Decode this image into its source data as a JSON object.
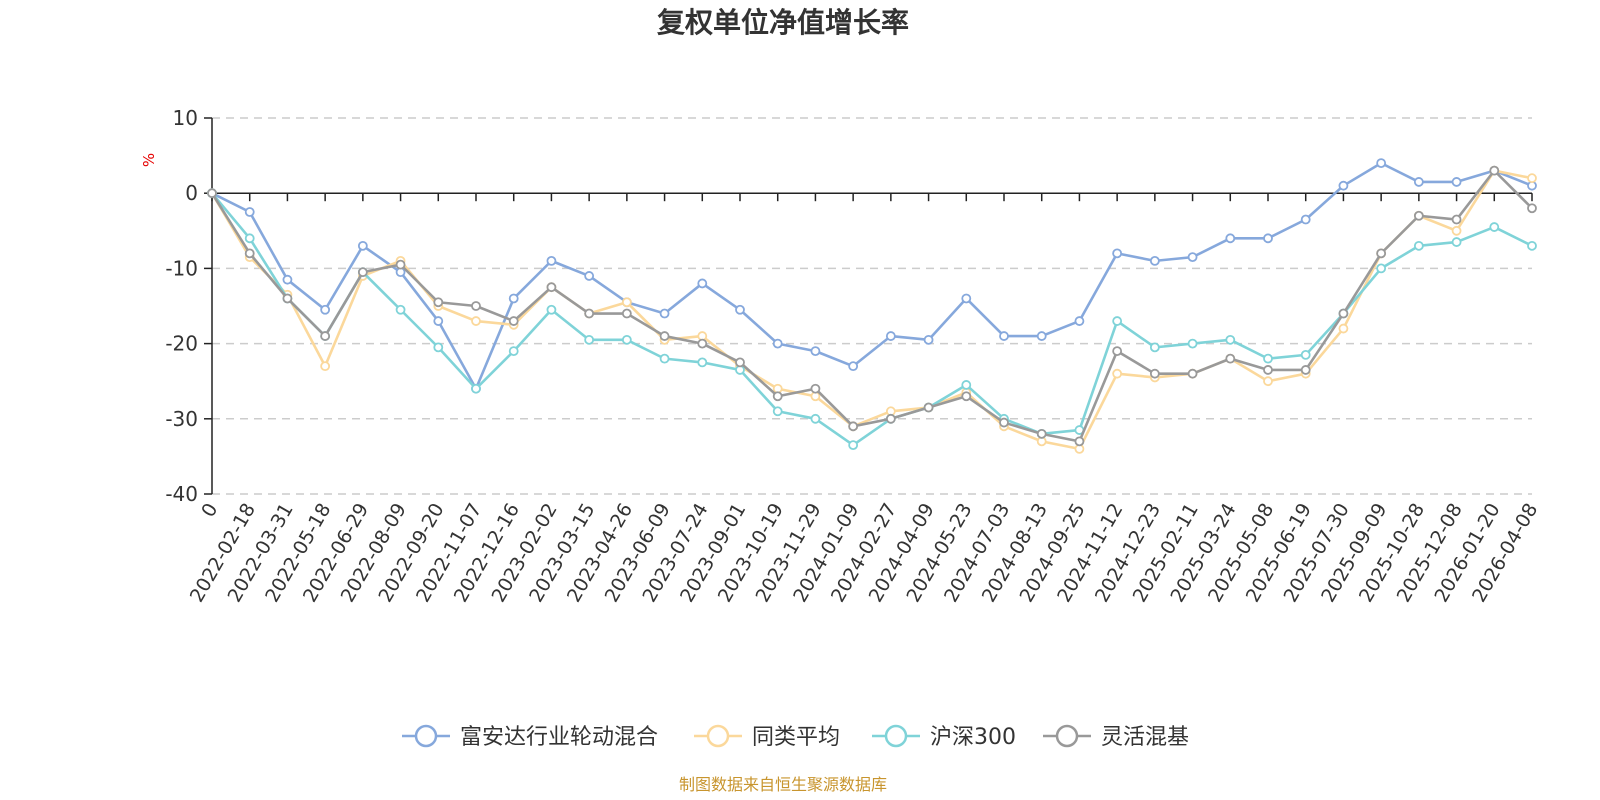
{
  "colors": {
    "fund": "#86a8dc",
    "peer": "#fbd89b",
    "hs300": "#7fd3d8",
    "flexible": "#999999",
    "grid": "#cccccc",
    "axis": "#222222",
    "ylabel": "#e60000",
    "source": "#c8952e"
  },
  "source": "制图数据来自恒生聚源数据库",
  "chart_data": {
    "type": "line",
    "title": "复权单位净值增长率",
    "ylabel": "%",
    "xlabel": "",
    "ylim": [
      -40,
      10
    ],
    "yticks": [
      10,
      0,
      -10,
      -20,
      -30,
      -40
    ],
    "grid": true,
    "legend_position": "bottom-center",
    "categories": [
      "0",
      "2022-02-18",
      "2022-03-31",
      "2022-05-18",
      "2022-06-29",
      "2022-08-09",
      "2022-09-20",
      "2022-11-07",
      "2022-12-16",
      "2023-02-02",
      "2023-03-15",
      "2023-04-26",
      "2023-06-09",
      "2023-07-24",
      "2023-09-01",
      "2023-10-19",
      "2023-11-29",
      "2024-01-09",
      "2024-02-27",
      "2024-04-09",
      "2024-05-23",
      "2024-07-03",
      "2024-08-13",
      "2024-09-25",
      "2024-11-12",
      "2024-12-23",
      "2025-02-11",
      "2025-03-24",
      "2025-05-08",
      "2025-06-19",
      "2025-07-30",
      "2025-09-09",
      "2025-10-28",
      "2025-12-08",
      "2026-01-20",
      "2026-04-08"
    ],
    "series": [
      {
        "name": "富安达行业轮动混合",
        "values": [
          0,
          -2.5,
          -11.5,
          -15.5,
          -7,
          -10.5,
          -17,
          -26,
          -14,
          -9,
          -11,
          -14.5,
          -16,
          -12,
          -15.5,
          -20,
          -21,
          -23,
          -19,
          -19.5,
          -14,
          -19,
          -19,
          -17,
          -8,
          -9,
          -8.5,
          -6,
          -6,
          -3.5,
          1,
          4,
          1.5,
          1.5,
          3,
          1
        ]
      },
      {
        "name": "同类平均",
        "values": [
          0,
          -8.5,
          -13.5,
          -23,
          -11,
          -9,
          -15,
          -17,
          -17.5,
          -12.5,
          -16,
          -14.5,
          -19.5,
          -19,
          -23,
          -26,
          -27,
          -31,
          -29,
          -28.5,
          -26.5,
          -31,
          -33,
          -34,
          -24,
          -24.5,
          -24,
          -22,
          -25,
          -24,
          -18,
          -8,
          -3,
          -5,
          3,
          2
        ]
      },
      {
        "name": "沪深300",
        "values": [
          0,
          -6,
          -14,
          -19,
          -10.5,
          -15.5,
          -20.5,
          -26,
          -21,
          -15.5,
          -19.5,
          -19.5,
          -22,
          -22.5,
          -23.5,
          -29,
          -30,
          -33.5,
          -30,
          -28.5,
          -25.5,
          -30,
          -32,
          -31.5,
          -17,
          -20.5,
          -20,
          -19.5,
          -22,
          -21.5,
          -16,
          -10,
          -7,
          -6.5,
          -4.5,
          -7
        ]
      },
      {
        "name": "灵活混基",
        "values": [
          0,
          -8,
          -14,
          -19,
          -10.5,
          -9.5,
          -14.5,
          -15,
          -17,
          -12.5,
          -16,
          -16,
          -19,
          -20,
          -22.5,
          -27,
          -26,
          -31,
          -30,
          -28.5,
          -27,
          -30.5,
          -32,
          -33,
          -21,
          -24,
          -24,
          -22,
          -23.5,
          -23.5,
          -16,
          -8,
          -3,
          -3.5,
          3,
          -2
        ]
      }
    ]
  }
}
